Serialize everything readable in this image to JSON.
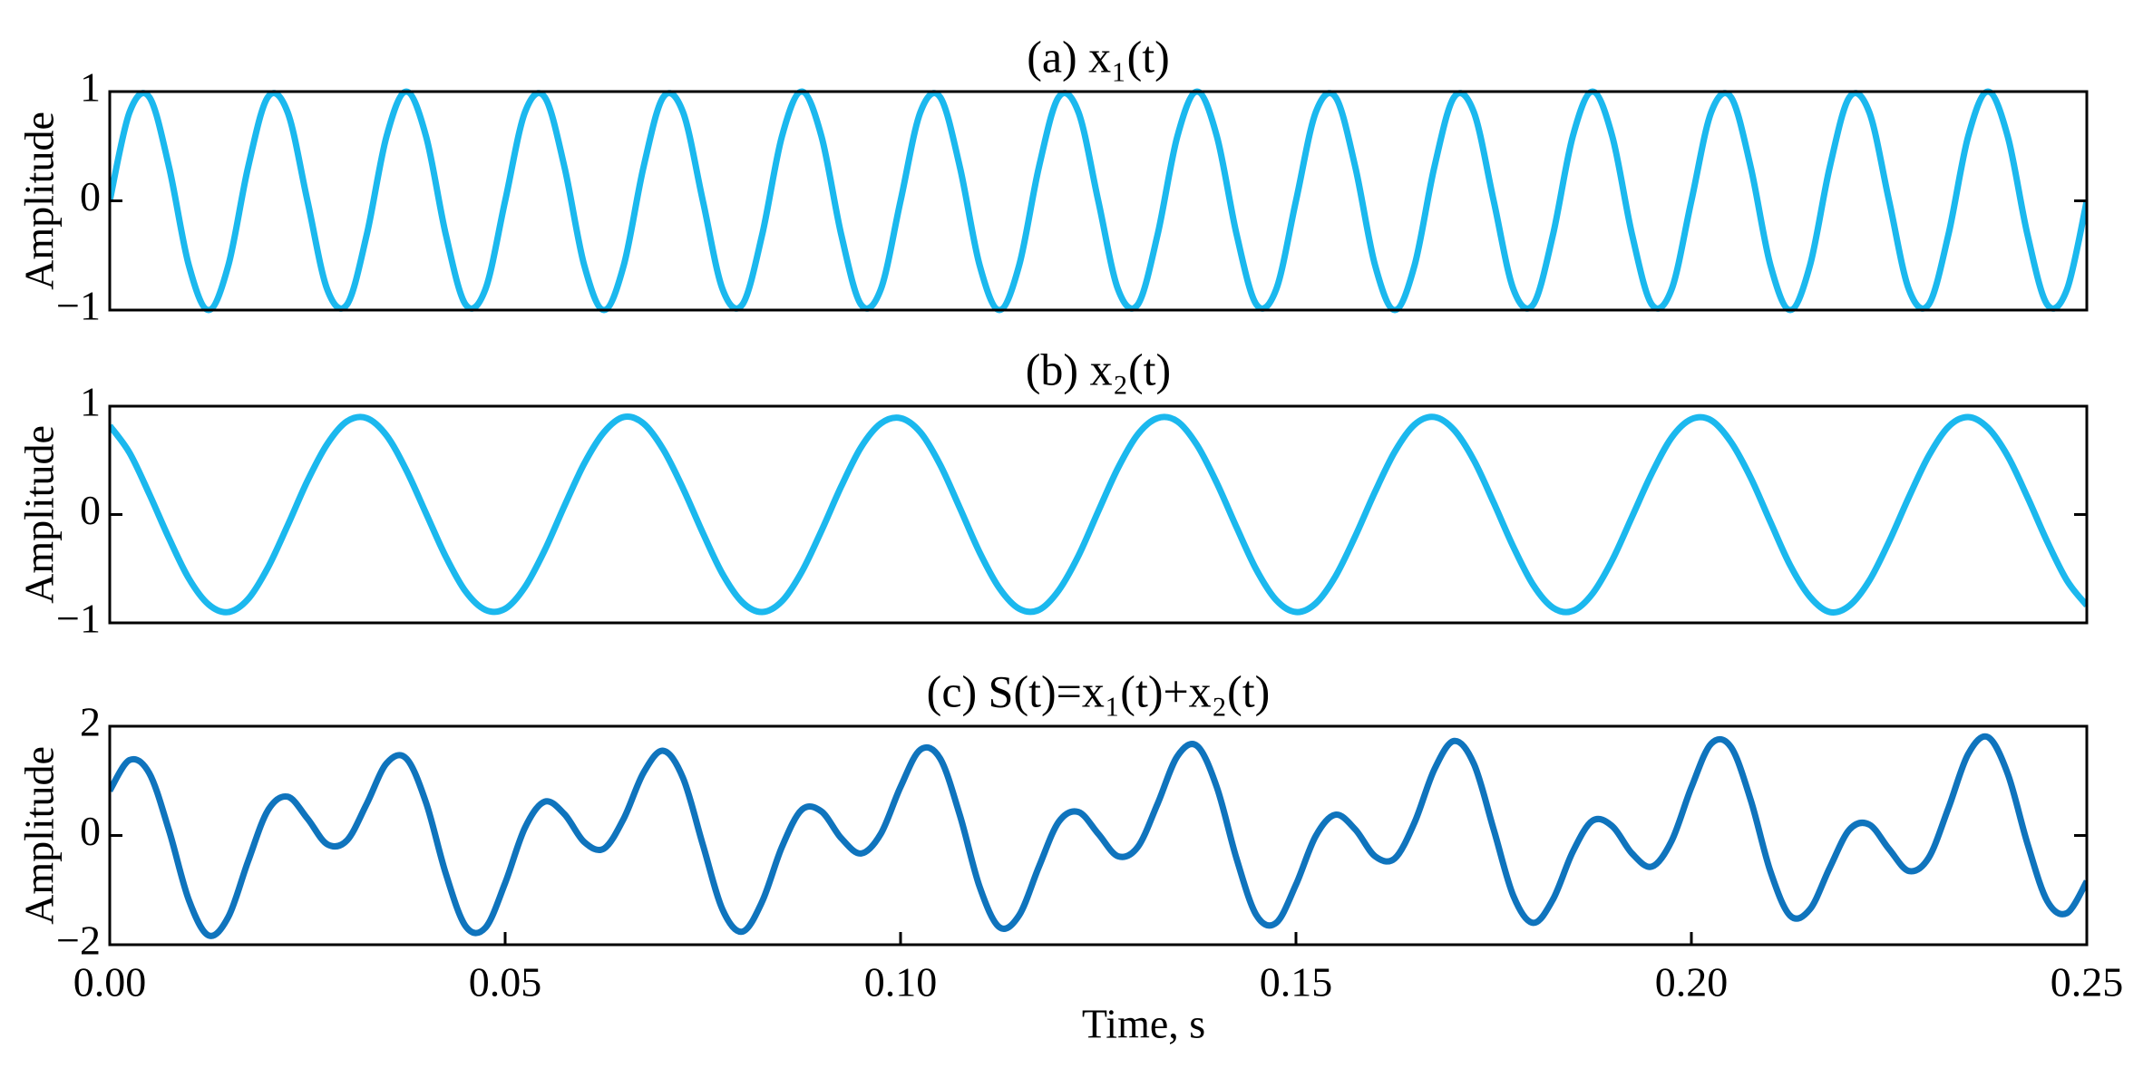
{
  "chart_data": [
    {
      "type": "line",
      "title": "(a) x₁(t)",
      "ylabel": "Amplitude",
      "x": [
        0,
        0.0025,
        0.005,
        0.0075,
        0.01,
        0.0125,
        0.015,
        0.0175,
        0.02,
        0.0225,
        0.025,
        0.0275,
        0.03,
        0.0325,
        0.035,
        0.0375,
        0.04,
        0.0425,
        0.045,
        0.0475,
        0.05,
        0.0525,
        0.055,
        0.0575,
        0.06,
        0.0625,
        0.065,
        0.0675,
        0.07,
        0.0725,
        0.075,
        0.0775,
        0.08,
        0.0825,
        0.085,
        0.0875,
        0.09,
        0.0925,
        0.095,
        0.0975,
        0.1,
        0.1025,
        0.105,
        0.1075,
        0.11,
        0.1125,
        0.115,
        0.1175,
        0.12,
        0.1225,
        0.125,
        0.1275,
        0.13,
        0.1325,
        0.135,
        0.1375,
        0.14,
        0.1425,
        0.145,
        0.1475,
        0.15,
        0.1525,
        0.155,
        0.1575,
        0.16,
        0.1625,
        0.165,
        0.1675,
        0.17,
        0.1725,
        0.175,
        0.1775,
        0.18,
        0.1825,
        0.185,
        0.1875,
        0.19,
        0.1925,
        0.195,
        0.1975,
        0.2,
        0.2025,
        0.205,
        0.2075,
        0.21,
        0.2125,
        0.215,
        0.2175,
        0.22,
        0.2225,
        0.225,
        0.2275,
        0.23,
        0.2325,
        0.235,
        0.2375,
        0.24,
        0.2425,
        0.245,
        0.2475,
        0.25
      ],
      "series": [
        {
          "color": "#1bb8ee",
          "values": [
            0,
            0.81,
            0.95,
            0.31,
            -0.59,
            -1,
            -0.59,
            0.31,
            0.95,
            0.81,
            0,
            -0.81,
            -0.95,
            -0.31,
            0.59,
            1,
            0.59,
            -0.31,
            -0.95,
            -0.81,
            0,
            0.81,
            0.95,
            0.31,
            -0.59,
            -1,
            -0.59,
            0.31,
            0.95,
            0.81,
            0,
            -0.81,
            -0.95,
            -0.31,
            0.59,
            1,
            0.59,
            -0.31,
            -0.95,
            -0.81,
            0,
            0.81,
            0.95,
            0.31,
            -0.59,
            -1,
            -0.59,
            0.31,
            0.95,
            0.81,
            0,
            -0.81,
            -0.95,
            -0.31,
            0.59,
            1,
            0.59,
            -0.31,
            -0.95,
            -0.81,
            0,
            0.81,
            0.95,
            0.31,
            -0.59,
            -1,
            -0.59,
            0.31,
            0.95,
            0.81,
            0,
            -0.81,
            -0.95,
            -0.31,
            0.59,
            1,
            0.59,
            -0.31,
            -0.95,
            -0.81,
            0,
            0.81,
            0.95,
            0.31,
            -0.59,
            -1,
            -0.59,
            0.31,
            0.95,
            0.81,
            0,
            -0.81,
            -0.95,
            -0.31,
            0.59,
            1,
            0.59,
            -0.31,
            -0.95,
            -0.81,
            0
          ]
        }
      ],
      "xlim": [
        0,
        0.25
      ],
      "ylim": [
        -1,
        1
      ],
      "yticks": [
        {
          "value": -1,
          "label": "−1"
        },
        0,
        1
      ]
    },
    {
      "type": "line",
      "title": "(b) x₂(t)",
      "ylabel": "Amplitude",
      "x": [
        0,
        0.0025,
        0.005,
        0.0075,
        0.01,
        0.0125,
        0.015,
        0.0175,
        0.02,
        0.0225,
        0.025,
        0.0275,
        0.03,
        0.0325,
        0.035,
        0.0375,
        0.04,
        0.0425,
        0.045,
        0.0475,
        0.05,
        0.0525,
        0.055,
        0.0575,
        0.06,
        0.0625,
        0.065,
        0.0675,
        0.07,
        0.0725,
        0.075,
        0.0775,
        0.08,
        0.0825,
        0.085,
        0.0875,
        0.09,
        0.0925,
        0.095,
        0.0975,
        0.1,
        0.1025,
        0.105,
        0.1075,
        0.11,
        0.1125,
        0.115,
        0.1175,
        0.12,
        0.1225,
        0.125,
        0.1275,
        0.13,
        0.1325,
        0.135,
        0.1375,
        0.14,
        0.1425,
        0.145,
        0.1475,
        0.15,
        0.1525,
        0.155,
        0.1575,
        0.16,
        0.1625,
        0.165,
        0.1675,
        0.17,
        0.1725,
        0.175,
        0.1775,
        0.18,
        0.1825,
        0.185,
        0.1875,
        0.19,
        0.1925,
        0.195,
        0.1975,
        0.2,
        0.2025,
        0.205,
        0.2075,
        0.21,
        0.2125,
        0.215,
        0.2175,
        0.22,
        0.2225,
        0.225,
        0.2275,
        0.23,
        0.2325,
        0.235,
        0.2375,
        0.24,
        0.2425,
        0.245,
        0.2475,
        0.25
      ],
      "series": [
        {
          "color": "#1bb8ee",
          "values": [
            0.82,
            0.57,
            0.19,
            -0.22,
            -0.59,
            -0.83,
            -0.9,
            -0.78,
            -0.49,
            -0.1,
            0.31,
            0.65,
            0.86,
            0.89,
            0.73,
            0.41,
            0.01,
            -0.39,
            -0.71,
            -0.88,
            -0.87,
            -0.67,
            -0.33,
            0.08,
            0.47,
            0.76,
            0.9,
            0.84,
            0.6,
            0.24,
            -0.17,
            -0.55,
            -0.81,
            -0.9,
            -0.8,
            -0.53,
            -0.15,
            0.26,
            0.62,
            0.84,
            0.89,
            0.76,
            0.46,
            0.06,
            -0.35,
            -0.68,
            -0.87,
            -0.88,
            -0.7,
            -0.38,
            0.03,
            0.43,
            0.74,
            0.89,
            0.86,
            0.64,
            0.29,
            -0.12,
            -0.51,
            -0.79,
            -0.9,
            -0.82,
            -0.57,
            -0.2,
            0.21,
            0.58,
            0.83,
            0.9,
            0.78,
            0.5,
            0.11,
            -0.3,
            -0.65,
            -0.86,
            -0.89,
            -0.73,
            -0.42,
            -0.02,
            0.38,
            0.71,
            0.88,
            0.87,
            0.67,
            0.34,
            -0.07,
            -0.47,
            -0.76,
            -0.9,
            -0.84,
            -0.61,
            -0.25,
            0.16,
            0.54,
            0.81,
            0.9,
            0.8,
            0.54,
            0.16,
            -0.25,
            -0.61,
            -0.84
          ]
        }
      ],
      "xlim": [
        0,
        0.25
      ],
      "ylim": [
        -1,
        1
      ],
      "yticks": [
        {
          "value": -1,
          "label": "−1"
        },
        0,
        1
      ]
    },
    {
      "type": "line",
      "title": "(c) S(t)=x₁(t)+x₂(t)",
      "ylabel": "Amplitude",
      "xlabel": "Time, s",
      "x": [
        0,
        0.0025,
        0.005,
        0.0075,
        0.01,
        0.0125,
        0.015,
        0.0175,
        0.02,
        0.0225,
        0.025,
        0.0275,
        0.03,
        0.0325,
        0.035,
        0.0375,
        0.04,
        0.0425,
        0.045,
        0.0475,
        0.05,
        0.0525,
        0.055,
        0.0575,
        0.06,
        0.0625,
        0.065,
        0.0675,
        0.07,
        0.0725,
        0.075,
        0.0775,
        0.08,
        0.0825,
        0.085,
        0.0875,
        0.09,
        0.0925,
        0.095,
        0.0975,
        0.1,
        0.1025,
        0.105,
        0.1075,
        0.11,
        0.1125,
        0.115,
        0.1175,
        0.12,
        0.1225,
        0.125,
        0.1275,
        0.13,
        0.1325,
        0.135,
        0.1375,
        0.14,
        0.1425,
        0.145,
        0.1475,
        0.15,
        0.1525,
        0.155,
        0.1575,
        0.16,
        0.1625,
        0.165,
        0.1675,
        0.17,
        0.1725,
        0.175,
        0.1775,
        0.18,
        0.1825,
        0.185,
        0.1875,
        0.19,
        0.1925,
        0.195,
        0.1975,
        0.2,
        0.2025,
        0.205,
        0.2075,
        0.21,
        0.2125,
        0.215,
        0.2175,
        0.22,
        0.2225,
        0.225,
        0.2275,
        0.23,
        0.2325,
        0.235,
        0.2375,
        0.24,
        0.2425,
        0.245,
        0.2475,
        0.25
      ],
      "series": [
        {
          "color": "#0f74bd",
          "values": [
            0.82,
            1.38,
            1.14,
            0.09,
            -1.18,
            -1.83,
            -1.49,
            -0.47,
            0.46,
            0.71,
            0.31,
            -0.16,
            -0.09,
            0.58,
            1.32,
            1.41,
            0.6,
            -0.7,
            -1.66,
            -1.69,
            -0.87,
            0.14,
            0.62,
            0.39,
            -0.12,
            -0.24,
            0.31,
            1.15,
            1.55,
            1.05,
            -0.17,
            -1.36,
            -1.76,
            -1.21,
            -0.21,
            0.47,
            0.44,
            -0.05,
            -0.33,
            0.03,
            0.89,
            1.57,
            1.41,
            0.37,
            -0.94,
            -1.68,
            -1.46,
            -0.57,
            0.25,
            0.43,
            0.03,
            -0.38,
            -0.21,
            0.58,
            1.45,
            1.64,
            0.88,
            -0.43,
            -1.46,
            -1.6,
            -0.9,
            -0.01,
            0.38,
            0.11,
            -0.38,
            -0.42,
            0.24,
            1.21,
            1.73,
            1.31,
            0.11,
            -1.11,
            -1.6,
            -1.17,
            -0.3,
            0.27,
            0.17,
            -0.33,
            -0.57,
            -0.1,
            0.88,
            1.68,
            1.62,
            0.65,
            -0.66,
            -1.47,
            -1.35,
            -0.59,
            0.11,
            0.2,
            -0.25,
            -0.65,
            -0.41,
            0.5,
            1.49,
            1.8,
            1.13,
            -0.15,
            -1.2,
            -1.42,
            -0.84
          ]
        }
      ],
      "xlim": [
        0,
        0.25
      ],
      "ylim": [
        -2,
        2
      ],
      "yticks": [
        {
          "value": -2,
          "label": "−2"
        },
        0,
        2
      ],
      "xticks": [
        {
          "value": 0,
          "label": "0.00"
        },
        {
          "value": 0.05,
          "label": "0.05"
        },
        {
          "value": 0.1,
          "label": "0.10"
        },
        {
          "value": 0.15,
          "label": "0.15"
        },
        {
          "value": 0.2,
          "label": "0.20"
        },
        {
          "value": 0.25,
          "label": "0.25"
        }
      ]
    }
  ]
}
